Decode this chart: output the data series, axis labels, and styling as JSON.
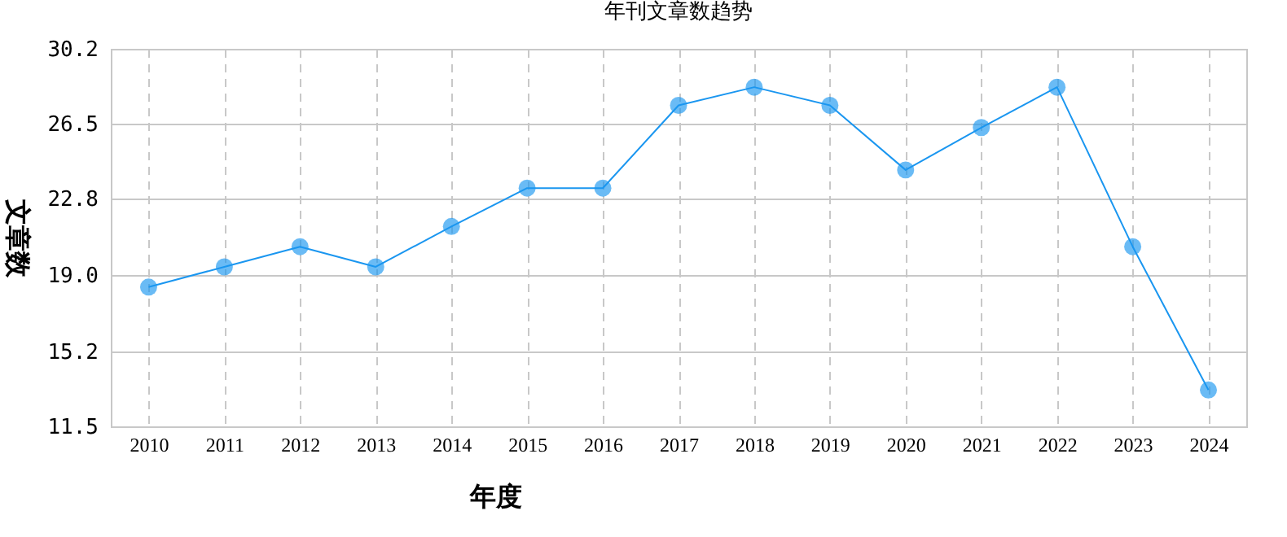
{
  "chart_data": {
    "type": "line",
    "title": "年刊文章数趋势",
    "xlabel": "年度",
    "ylabel": "文章数",
    "categories": [
      "2010",
      "2011",
      "2012",
      "2013",
      "2014",
      "2015",
      "2016",
      "2017",
      "2018",
      "2019",
      "2020",
      "2021",
      "2022",
      "2023",
      "2024"
    ],
    "series": [
      {
        "color": "#1a96f0",
        "values": [
          18.4,
          19.4,
          20.4,
          19.4,
          21.4,
          23.3,
          23.3,
          27.4,
          28.3,
          27.4,
          24.2,
          26.3,
          28.3,
          20.4,
          13.3
        ]
      }
    ],
    "ylim": [
      11.5,
      30.2
    ],
    "yticks": [
      {
        "value": 11.5,
        "label": "11.5"
      },
      {
        "value": 15.2,
        "label": "15.2"
      },
      {
        "value": 19,
        "label": "19.0"
      },
      {
        "value": 22.8,
        "label": "22.8"
      },
      {
        "value": 26.5,
        "label": "26.5"
      },
      {
        "value": 30.2,
        "label": "30.2"
      }
    ],
    "grid": true,
    "marker": "circle"
  }
}
